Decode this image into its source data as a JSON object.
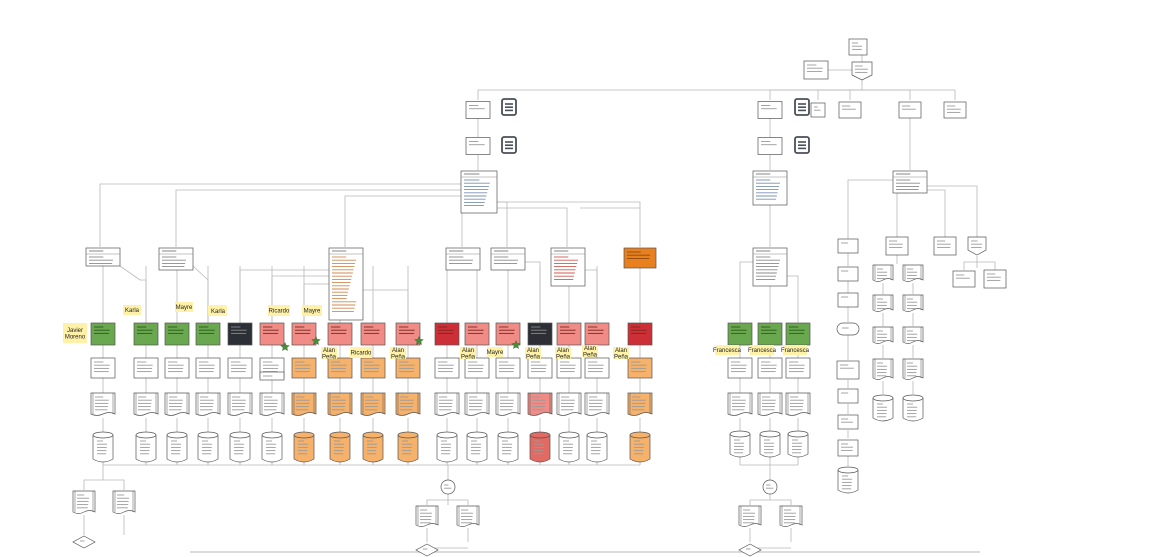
{
  "canvas": {
    "background": "#ffffff"
  },
  "colors": {
    "green": "#6aa84f",
    "dark": "#2d2f36",
    "pink": "#f08c85",
    "red": "#cc2f36",
    "orange": "#f6b26b",
    "orange_dark": "#e8801f",
    "sticky": "#fff2a8",
    "star": "#4c8a3c",
    "line": "#b8b8b8",
    "box_stroke": "#555555"
  },
  "notes": [
    "Javier Moreno",
    "Karla",
    "Karla",
    "Mayre",
    "Karla",
    "Ricardo",
    "Mayre",
    "Ricardo",
    "Alan Peña",
    "Alan Peña",
    "Alan Peña",
    "Alan Peña",
    "Alan Peña",
    "Mayre",
    "Alan Peña",
    "Alan Peña",
    "Francesca",
    "Francesca",
    "Francesca"
  ],
  "icons": [
    "document-icon",
    "document-icon",
    "document-icon",
    "document-icon",
    "star-icon"
  ]
}
